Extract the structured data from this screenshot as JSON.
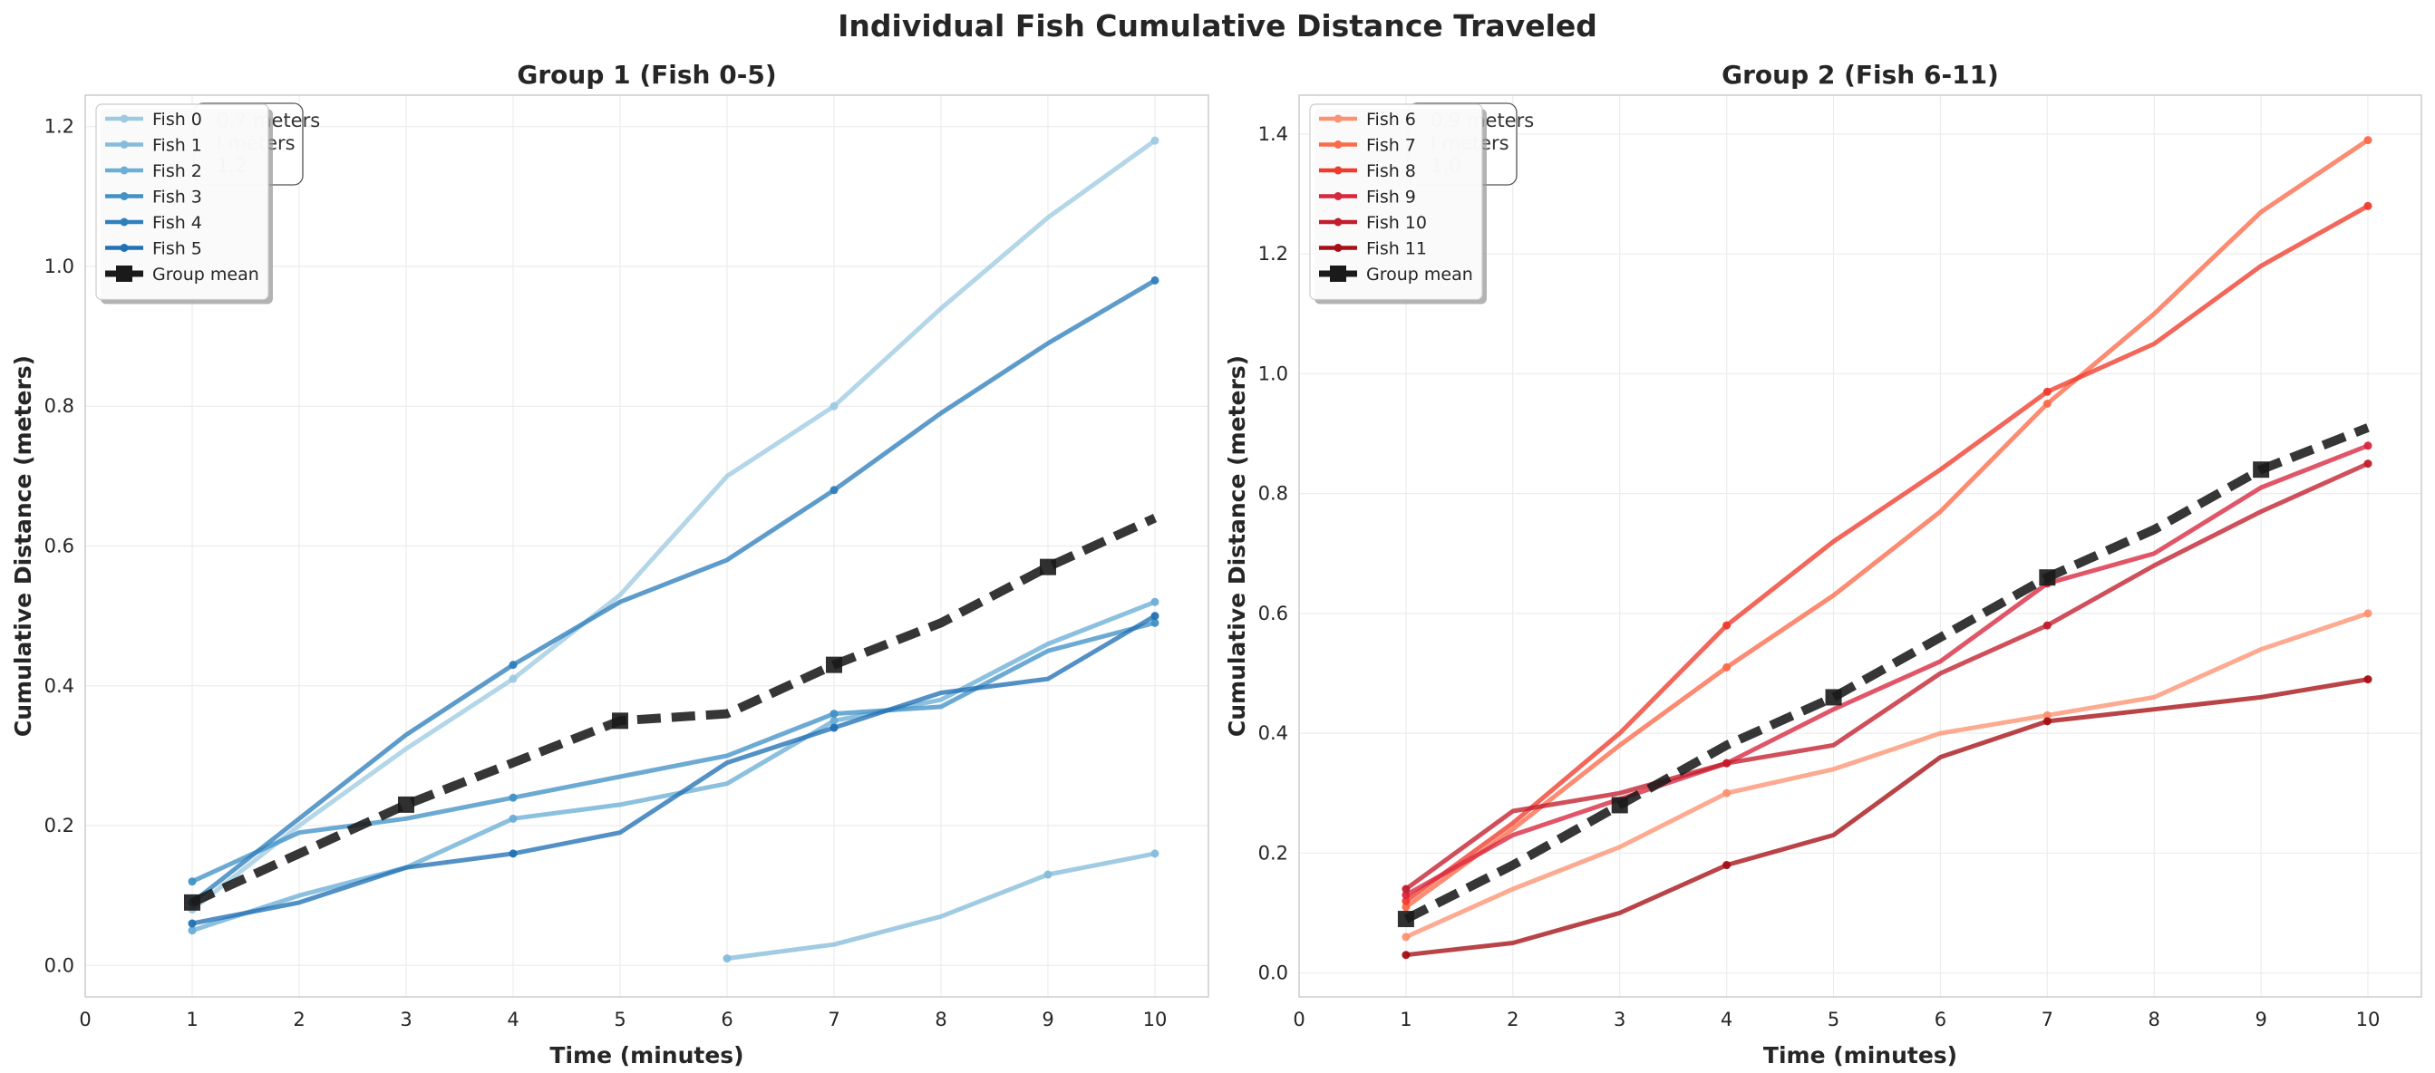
{
  "figure": {
    "title": "Individual Fish Cumulative Distance Traveled"
  },
  "colors": {
    "group1": [
      "#9ecae1",
      "#85bcdb",
      "#6baed6",
      "#4292c6",
      "#2f7fbc",
      "#2171b5"
    ],
    "group2": [
      "#fc9272",
      "#fb6a4a",
      "#ef3b2c",
      "#d7263d",
      "#c21d2d",
      "#a50f15"
    ],
    "mean": "#1a1a1a",
    "grid": "#ececec"
  },
  "chart_data": [
    {
      "type": "line",
      "title": "Group 1 (Fish 0-5)",
      "xlabel": "Time (minutes)",
      "ylabel": "Cumulative Distance (meters)",
      "xlim": [
        0,
        10.5
      ],
      "ylim": [
        -0.045,
        1.245
      ],
      "xticks": [
        0,
        1,
        2,
        3,
        4,
        5,
        6,
        7,
        8,
        9,
        10
      ],
      "yticks": [
        0.0,
        0.2,
        0.4,
        0.6,
        0.8,
        1.0,
        1.2
      ],
      "grid": true,
      "legend_position": "top-left",
      "background_annotation": [
        "0.7 meters",
        "l meters",
        "1.2"
      ],
      "series": [
        {
          "name": "Fish 0",
          "x": [
            1,
            2,
            3,
            4,
            5,
            6,
            7,
            8,
            9,
            10
          ],
          "y": [
            0.08,
            0.2,
            0.31,
            0.41,
            0.53,
            0.7,
            0.8,
            0.94,
            1.07,
            1.18
          ]
        },
        {
          "name": "Fish 1",
          "x": [
            6,
            7,
            8,
            9,
            10
          ],
          "y": [
            0.01,
            0.03,
            0.07,
            0.13,
            0.16
          ]
        },
        {
          "name": "Fish 2",
          "x": [
            1,
            2,
            3,
            4,
            5,
            6,
            7,
            8,
            9,
            10
          ],
          "y": [
            0.05,
            0.1,
            0.14,
            0.21,
            0.23,
            0.26,
            0.35,
            0.38,
            0.46,
            0.52
          ]
        },
        {
          "name": "Fish 3",
          "x": [
            1,
            2,
            3,
            4,
            5,
            6,
            7,
            8,
            9,
            10
          ],
          "y": [
            0.12,
            0.19,
            0.21,
            0.24,
            0.27,
            0.3,
            0.36,
            0.37,
            0.45,
            0.49
          ]
        },
        {
          "name": "Fish 4",
          "x": [
            1,
            2,
            3,
            4,
            5,
            6,
            7,
            8,
            9,
            10
          ],
          "y": [
            0.09,
            0.21,
            0.33,
            0.43,
            0.52,
            0.58,
            0.68,
            0.79,
            0.89,
            0.98
          ]
        },
        {
          "name": "Fish 5",
          "x": [
            1,
            2,
            3,
            4,
            5,
            6,
            7,
            8,
            9,
            10
          ],
          "y": [
            0.06,
            0.09,
            0.14,
            0.16,
            0.19,
            0.29,
            0.34,
            0.39,
            0.41,
            0.5
          ]
        }
      ],
      "mean": {
        "name": "Group mean",
        "x": [
          1,
          2,
          3,
          4,
          5,
          6,
          7,
          8,
          9,
          10
        ],
        "y": [
          0.09,
          0.16,
          0.23,
          0.29,
          0.35,
          0.36,
          0.43,
          0.49,
          0.57,
          0.64
        ],
        "markers_at": [
          1,
          3,
          5,
          7,
          9
        ]
      }
    },
    {
      "type": "line",
      "title": "Group 2 (Fish 6-11)",
      "xlabel": "Time (minutes)",
      "ylabel": "Cumulative Distance (meters)",
      "xlim": [
        0,
        10.5
      ],
      "ylim": [
        -0.04,
        1.465
      ],
      "xticks": [
        0,
        1,
        2,
        3,
        4,
        5,
        6,
        7,
        8,
        9,
        10
      ],
      "yticks": [
        0.0,
        0.2,
        0.4,
        0.6,
        0.8,
        1.0,
        1.2,
        1.4
      ],
      "grid": true,
      "legend_position": "top-left",
      "background_annotation": [
        "0.9 meters",
        "l meters",
        "1.0"
      ],
      "series": [
        {
          "name": "Fish 6",
          "x": [
            1,
            2,
            3,
            4,
            5,
            6,
            7,
            8,
            9,
            10
          ],
          "y": [
            0.06,
            0.14,
            0.21,
            0.3,
            0.34,
            0.4,
            0.43,
            0.46,
            0.54,
            0.6
          ]
        },
        {
          "name": "Fish 7",
          "x": [
            1,
            2,
            3,
            4,
            5,
            6,
            7,
            8,
            9,
            10
          ],
          "y": [
            0.11,
            0.24,
            0.38,
            0.51,
            0.63,
            0.77,
            0.95,
            1.1,
            1.27,
            1.39
          ]
        },
        {
          "name": "Fish 8",
          "x": [
            1,
            2,
            3,
            4,
            5,
            6,
            7,
            8,
            9,
            10
          ],
          "y": [
            0.12,
            0.25,
            0.4,
            0.58,
            0.72,
            0.84,
            0.97,
            1.05,
            1.18,
            1.28
          ]
        },
        {
          "name": "Fish 9",
          "x": [
            1,
            2,
            3,
            4,
            5,
            6,
            7,
            8,
            9,
            10
          ],
          "y": [
            0.13,
            0.23,
            0.29,
            0.35,
            0.44,
            0.52,
            0.65,
            0.7,
            0.81,
            0.88
          ]
        },
        {
          "name": "Fish 10",
          "x": [
            1,
            2,
            3,
            4,
            5,
            6,
            7,
            8,
            9,
            10
          ],
          "y": [
            0.14,
            0.27,
            0.3,
            0.35,
            0.38,
            0.5,
            0.58,
            0.68,
            0.77,
            0.85
          ]
        },
        {
          "name": "Fish 11",
          "x": [
            1,
            2,
            3,
            4,
            5,
            6,
            7,
            8,
            9,
            10
          ],
          "y": [
            0.03,
            0.05,
            0.1,
            0.18,
            0.23,
            0.36,
            0.42,
            0.44,
            0.46,
            0.49
          ]
        }
      ],
      "mean": {
        "name": "Group mean",
        "x": [
          1,
          2,
          3,
          4,
          5,
          6,
          7,
          8,
          9,
          10
        ],
        "y": [
          0.09,
          0.18,
          0.28,
          0.38,
          0.46,
          0.56,
          0.66,
          0.74,
          0.84,
          0.91
        ],
        "markers_at": [
          1,
          3,
          5,
          7,
          9
        ]
      }
    }
  ]
}
